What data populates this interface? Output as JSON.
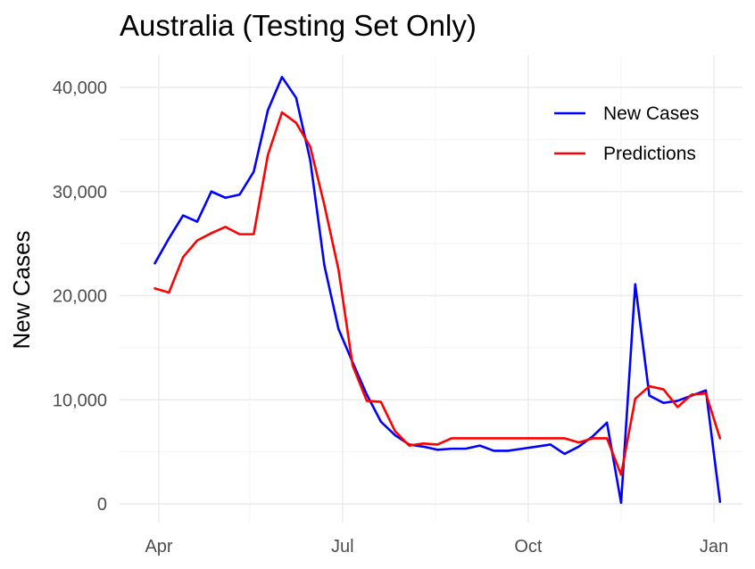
{
  "chart_data": {
    "type": "line",
    "title": "Australia (Testing Set Only)",
    "ylabel": "New Cases",
    "xlabel": "",
    "ylim": [
      0,
      41000
    ],
    "y_ticks": [
      0,
      10000,
      20000,
      30000,
      40000
    ],
    "y_tick_labels": [
      "0",
      "10,000",
      "20,000",
      "30,000",
      "40,000"
    ],
    "x_ticks": [
      {
        "label": "Apr",
        "date": "2022-04-01"
      },
      {
        "label": "Jul",
        "date": "2022-07-01"
      },
      {
        "label": "Oct",
        "date": "2022-10-01"
      },
      {
        "label": "Jan",
        "date": "2023-01-01"
      }
    ],
    "x_minor_ticks": [
      "2022-05-16",
      "2022-08-16",
      "2022-11-16"
    ],
    "legend": {
      "position": "top-right"
    },
    "grid": true,
    "series": [
      {
        "name": "New Cases",
        "color": "#0000ff",
        "points": [
          [
            "2022-03-30",
            23100
          ],
          [
            "2022-04-06",
            25500
          ],
          [
            "2022-04-13",
            27700
          ],
          [
            "2022-04-20",
            27100
          ],
          [
            "2022-04-27",
            30000
          ],
          [
            "2022-05-04",
            29400
          ],
          [
            "2022-05-11",
            29700
          ],
          [
            "2022-05-18",
            31900
          ],
          [
            "2022-05-25",
            37800
          ],
          [
            "2022-06-01",
            41000
          ],
          [
            "2022-06-08",
            39000
          ],
          [
            "2022-06-15",
            33000
          ],
          [
            "2022-06-22",
            22900
          ],
          [
            "2022-06-29",
            16800
          ],
          [
            "2022-07-06",
            13600
          ],
          [
            "2022-07-13",
            10500
          ],
          [
            "2022-07-20",
            7900
          ],
          [
            "2022-07-27",
            6600
          ],
          [
            "2022-08-03",
            5700
          ],
          [
            "2022-08-10",
            5500
          ],
          [
            "2022-08-17",
            5200
          ],
          [
            "2022-08-24",
            5300
          ],
          [
            "2022-08-31",
            5300
          ],
          [
            "2022-09-07",
            5600
          ],
          [
            "2022-09-14",
            5100
          ],
          [
            "2022-09-21",
            5100
          ],
          [
            "2022-09-28",
            5300
          ],
          [
            "2022-10-05",
            5500
          ],
          [
            "2022-10-12",
            5700
          ],
          [
            "2022-10-19",
            4800
          ],
          [
            "2022-10-26",
            5500
          ],
          [
            "2022-11-02",
            6500
          ],
          [
            "2022-11-09",
            7800
          ],
          [
            "2022-11-16",
            100
          ],
          [
            "2022-11-23",
            21100
          ],
          [
            "2022-11-30",
            10400
          ],
          [
            "2022-12-07",
            9700
          ],
          [
            "2022-12-14",
            9900
          ],
          [
            "2022-12-21",
            10400
          ],
          [
            "2022-12-28",
            10900
          ],
          [
            "2023-01-04",
            200
          ]
        ]
      },
      {
        "name": "Predictions",
        "color": "#ff0000",
        "points": [
          [
            "2022-03-30",
            20700
          ],
          [
            "2022-04-06",
            20300
          ],
          [
            "2022-04-13",
            23700
          ],
          [
            "2022-04-20",
            25300
          ],
          [
            "2022-04-27",
            26000
          ],
          [
            "2022-05-04",
            26600
          ],
          [
            "2022-05-11",
            25900
          ],
          [
            "2022-05-18",
            25900
          ],
          [
            "2022-05-25",
            33500
          ],
          [
            "2022-06-01",
            37600
          ],
          [
            "2022-06-08",
            36600
          ],
          [
            "2022-06-15",
            34300
          ],
          [
            "2022-06-22",
            28700
          ],
          [
            "2022-06-29",
            22500
          ],
          [
            "2022-07-06",
            13300
          ],
          [
            "2022-07-13",
            9900
          ],
          [
            "2022-07-20",
            9800
          ],
          [
            "2022-07-27",
            7000
          ],
          [
            "2022-08-03",
            5600
          ],
          [
            "2022-08-10",
            5800
          ],
          [
            "2022-08-17",
            5700
          ],
          [
            "2022-08-24",
            6300
          ],
          [
            "2022-08-31",
            6300
          ],
          [
            "2022-09-07",
            6300
          ],
          [
            "2022-09-14",
            6300
          ],
          [
            "2022-09-21",
            6300
          ],
          [
            "2022-09-28",
            6300
          ],
          [
            "2022-10-05",
            6300
          ],
          [
            "2022-10-12",
            6300
          ],
          [
            "2022-10-19",
            6300
          ],
          [
            "2022-10-26",
            5900
          ],
          [
            "2022-11-02",
            6300
          ],
          [
            "2022-11-09",
            6300
          ],
          [
            "2022-11-16",
            2800
          ],
          [
            "2022-11-23",
            10100
          ],
          [
            "2022-11-30",
            11300
          ],
          [
            "2022-12-07",
            11000
          ],
          [
            "2022-12-14",
            9300
          ],
          [
            "2022-12-21",
            10500
          ],
          [
            "2022-12-28",
            10600
          ],
          [
            "2023-01-04",
            6300
          ]
        ]
      }
    ]
  }
}
